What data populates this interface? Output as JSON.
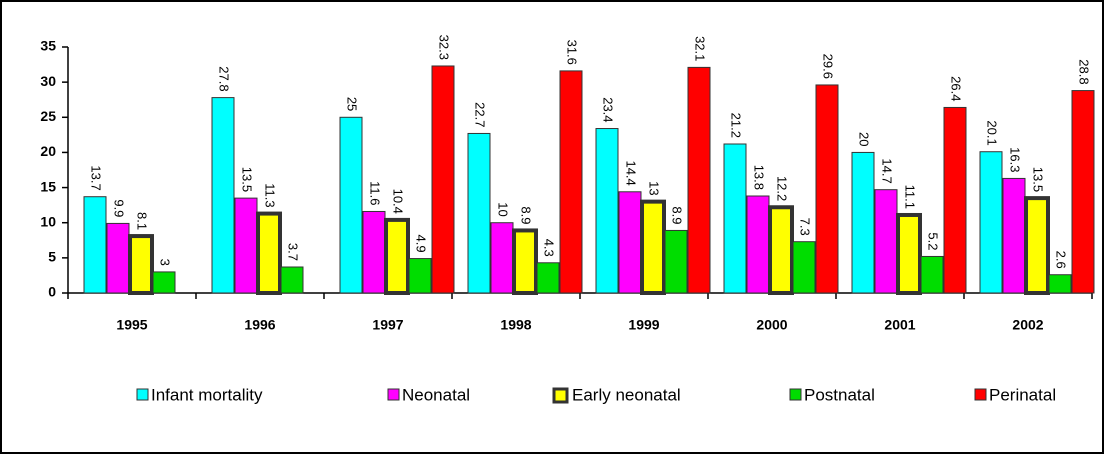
{
  "chart_data": {
    "type": "bar",
    "categories": [
      "1995",
      "1996",
      "1997",
      "1998",
      "1999",
      "2000",
      "2001",
      "2002"
    ],
    "series": [
      {
        "name": "Infant mortality",
        "color": "#00ffff",
        "values": [
          13.7,
          27.8,
          25,
          22.7,
          23.4,
          21.2,
          20,
          20.1
        ]
      },
      {
        "name": "Neonatal",
        "color": "#ff00ff",
        "values": [
          9.9,
          13.5,
          11.6,
          10,
          14.4,
          13.8,
          14.7,
          16.3
        ]
      },
      {
        "name": "Early neonatal",
        "color": "#ffff00",
        "values": [
          8.1,
          11.3,
          10.4,
          8.9,
          13,
          12.2,
          11.1,
          13.5
        ]
      },
      {
        "name": "Postnatal",
        "color": "#00dd00",
        "values": [
          3,
          3.7,
          4.9,
          4.3,
          8.9,
          7.3,
          5.2,
          2.6
        ]
      },
      {
        "name": "Perinatal",
        "color": "#ff0000",
        "values": [
          null,
          null,
          32.3,
          31.6,
          32.1,
          29.6,
          26.4,
          28.8
        ]
      }
    ],
    "ylim": [
      0,
      35
    ],
    "yticks": [
      0,
      5,
      10,
      15,
      20,
      25,
      30,
      35
    ],
    "legend": "bottom"
  }
}
